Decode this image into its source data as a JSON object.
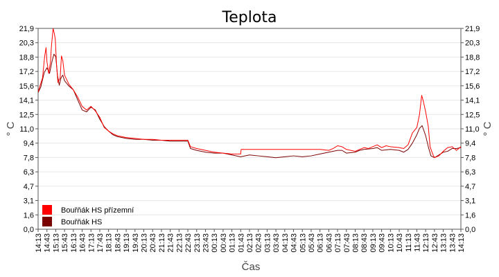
{
  "chart_data": {
    "type": "line",
    "title": "Teplota",
    "xlabel": "Čas",
    "ylabel": "° C",
    "ylim": [
      0,
      21.9
    ],
    "yticks": [
      "0,0",
      "1,6",
      "3,1",
      "4,7",
      "6,3",
      "7,8",
      "9,4",
      "11,0",
      "12,5",
      "14,1",
      "15,6",
      "17,2",
      "18,8",
      "20,3",
      "21,9"
    ],
    "xticks": [
      "14:13",
      "14:43",
      "15:13",
      "15:43",
      "16:13",
      "16:43",
      "17:13",
      "17:43",
      "18:13",
      "18:43",
      "19:13",
      "19:43",
      "20:13",
      "20:43",
      "21:13",
      "21:43",
      "22:13",
      "22:43",
      "23:13",
      "23:43",
      "00:13",
      "00:43",
      "01:13",
      "01:43",
      "02:13",
      "02:43",
      "03:13",
      "03:43",
      "04:13",
      "04:43",
      "05:13",
      "05:43",
      "06:13",
      "06:43",
      "07:13",
      "07:43",
      "08:13",
      "08:43",
      "09:13",
      "09:43",
      "10:13",
      "10:43",
      "11:13",
      "11:43",
      "12:13",
      "12:43",
      "13:13",
      "13:43",
      "14:13"
    ],
    "grid": "horizontal",
    "legend_position": "bottom-left",
    "series": [
      {
        "name": "Bouřňák HS přízemní",
        "color": "#ff0000",
        "points": [
          [
            0,
            15.0
          ],
          [
            0.5,
            16.5
          ],
          [
            0.75,
            18.9
          ],
          [
            0.9,
            19.8
          ],
          [
            1.0,
            18.3
          ],
          [
            1.2,
            17.0
          ],
          [
            1.4,
            18.2
          ],
          [
            1.5,
            19.8
          ],
          [
            1.7,
            21.9
          ],
          [
            1.85,
            21.3
          ],
          [
            1.95,
            20.7
          ],
          [
            2.1,
            17.8
          ],
          [
            2.25,
            16.0
          ],
          [
            2.5,
            16.5
          ],
          [
            2.65,
            18.9
          ],
          [
            2.8,
            18.4
          ],
          [
            3.0,
            16.8
          ],
          [
            3.5,
            15.8
          ],
          [
            4.0,
            15.2
          ],
          [
            4.5,
            14.4
          ],
          [
            5.0,
            13.4
          ],
          [
            5.5,
            13.0
          ],
          [
            6.0,
            13.4
          ],
          [
            6.5,
            12.9
          ],
          [
            7.0,
            12.2
          ],
          [
            7.5,
            11.1
          ],
          [
            8.0,
            10.7
          ],
          [
            8.5,
            10.4
          ],
          [
            9.0,
            10.2
          ],
          [
            10,
            10.0
          ],
          [
            11,
            9.9
          ],
          [
            12,
            9.8
          ],
          [
            13,
            9.8
          ],
          [
            14,
            9.7
          ],
          [
            15,
            9.7
          ],
          [
            16,
            9.7
          ],
          [
            17,
            9.7
          ],
          [
            17.3,
            9.0
          ],
          [
            18,
            8.8
          ],
          [
            19,
            8.6
          ],
          [
            20,
            8.4
          ],
          [
            21,
            8.3
          ],
          [
            22,
            8.2
          ],
          [
            23,
            8.2
          ],
          [
            23.05,
            8.7
          ],
          [
            25,
            8.7
          ],
          [
            28,
            8.7
          ],
          [
            30,
            8.7
          ],
          [
            31,
            8.7
          ],
          [
            32,
            8.7
          ],
          [
            33,
            8.6
          ],
          [
            33.5,
            8.8
          ],
          [
            34,
            9.1
          ],
          [
            34.5,
            9.0
          ],
          [
            35,
            8.7
          ],
          [
            36,
            8.5
          ],
          [
            36.5,
            8.7
          ],
          [
            37,
            8.9
          ],
          [
            37.5,
            8.8
          ],
          [
            38,
            9.0
          ],
          [
            38.5,
            9.2
          ],
          [
            39,
            8.9
          ],
          [
            39.5,
            9.1
          ],
          [
            40,
            9.0
          ],
          [
            41,
            8.9
          ],
          [
            41.5,
            8.8
          ],
          [
            42,
            9.2
          ],
          [
            42.5,
            10.5
          ],
          [
            43,
            11.1
          ],
          [
            43.3,
            12.5
          ],
          [
            43.55,
            14.6
          ],
          [
            43.75,
            13.9
          ],
          [
            44.0,
            12.8
          ],
          [
            44.3,
            11.2
          ],
          [
            44.5,
            9.0
          ],
          [
            44.8,
            8.2
          ],
          [
            45,
            7.8
          ],
          [
            45.5,
            8.0
          ],
          [
            46,
            8.5
          ],
          [
            46.5,
            8.9
          ],
          [
            47,
            9.0
          ],
          [
            47.5,
            8.6
          ],
          [
            48,
            9.0
          ]
        ]
      },
      {
        "name": "Bouřňák HS",
        "color": "#7a0000",
        "points": [
          [
            0,
            14.9
          ],
          [
            0.3,
            15.5
          ],
          [
            0.7,
            17.1
          ],
          [
            1.0,
            17.6
          ],
          [
            1.3,
            17.0
          ],
          [
            1.6,
            18.4
          ],
          [
            1.8,
            19.1
          ],
          [
            2.0,
            18.8
          ],
          [
            2.2,
            16.8
          ],
          [
            2.4,
            15.7
          ],
          [
            2.6,
            16.5
          ],
          [
            2.8,
            16.8
          ],
          [
            3.0,
            16.2
          ],
          [
            3.5,
            15.6
          ],
          [
            4.0,
            15.2
          ],
          [
            4.5,
            14.1
          ],
          [
            5.0,
            13.0
          ],
          [
            5.5,
            12.8
          ],
          [
            6.0,
            13.3
          ],
          [
            6.5,
            13.0
          ],
          [
            7.0,
            12.0
          ],
          [
            7.5,
            11.2
          ],
          [
            8.0,
            10.7
          ],
          [
            8.5,
            10.3
          ],
          [
            9.0,
            10.1
          ],
          [
            10,
            9.9
          ],
          [
            11,
            9.8
          ],
          [
            12,
            9.8
          ],
          [
            13,
            9.7
          ],
          [
            14,
            9.7
          ],
          [
            15,
            9.6
          ],
          [
            16,
            9.6
          ],
          [
            17,
            9.6
          ],
          [
            17.3,
            8.8
          ],
          [
            18,
            8.6
          ],
          [
            19,
            8.4
          ],
          [
            20,
            8.3
          ],
          [
            21,
            8.3
          ],
          [
            22,
            8.1
          ],
          [
            23,
            7.9
          ],
          [
            24,
            8.1
          ],
          [
            25,
            8.0
          ],
          [
            26,
            7.9
          ],
          [
            27,
            7.8
          ],
          [
            28,
            7.9
          ],
          [
            29,
            8.0
          ],
          [
            30,
            7.9
          ],
          [
            31,
            8.0
          ],
          [
            32,
            8.2
          ],
          [
            33,
            8.4
          ],
          [
            34,
            8.6
          ],
          [
            34.5,
            8.6
          ],
          [
            35,
            8.3
          ],
          [
            36,
            8.4
          ],
          [
            36.5,
            8.6
          ],
          [
            37,
            8.7
          ],
          [
            38,
            8.8
          ],
          [
            38.5,
            8.9
          ],
          [
            39,
            8.6
          ],
          [
            40,
            8.7
          ],
          [
            41,
            8.6
          ],
          [
            41.5,
            8.4
          ],
          [
            42,
            8.7
          ],
          [
            42.5,
            9.4
          ],
          [
            43,
            10.3
          ],
          [
            43.3,
            11.0
          ],
          [
            43.6,
            11.3
          ],
          [
            44.0,
            10.2
          ],
          [
            44.3,
            9.0
          ],
          [
            44.6,
            8.0
          ],
          [
            45,
            7.8
          ],
          [
            45.5,
            8.1
          ],
          [
            46,
            8.4
          ],
          [
            46.5,
            8.5
          ],
          [
            47,
            8.8
          ],
          [
            47.5,
            8.8
          ],
          [
            48,
            8.9
          ]
        ]
      }
    ]
  }
}
